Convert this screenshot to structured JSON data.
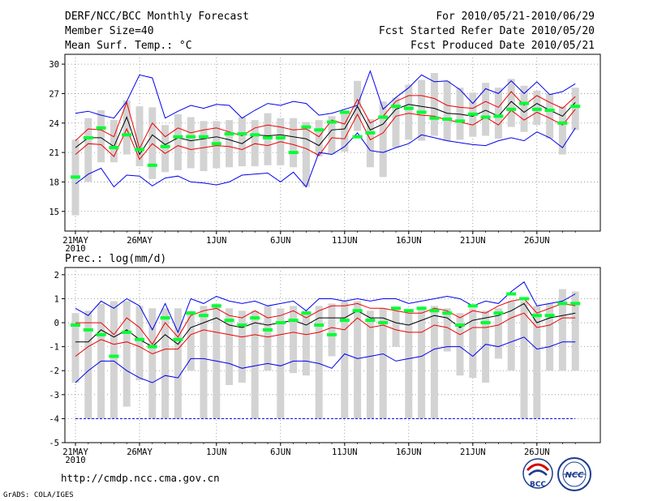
{
  "header": {
    "title": "DERF/NCC/BCC Monthly Forecast",
    "member_size": "Member Size=40",
    "variable": "Mean Surf. Temp.: °C",
    "period": "For 2010/05/21-2010/06/29",
    "started_refer": "Fcst Started Refer Date 2010/05/20",
    "produced": "Fcst Produced Date 2010/05/21"
  },
  "footer": {
    "url": "http://cmdp.ncc.cma.gov.cn",
    "grads": "GrADS: COLA/IGES",
    "logo_bcc": "BCC",
    "logo_ncc": "NCC"
  },
  "x_ticks": [
    {
      "day": 0,
      "label": "21MAY",
      "sub": "2010"
    },
    {
      "day": 5,
      "label": "26MAY",
      "sub": ""
    },
    {
      "day": 11,
      "label": "1JUN",
      "sub": ""
    },
    {
      "day": 16,
      "label": "6JUN",
      "sub": ""
    },
    {
      "day": 21,
      "label": "11JUN",
      "sub": ""
    },
    {
      "day": 26,
      "label": "16JUN",
      "sub": ""
    },
    {
      "day": 31,
      "label": "21JUN",
      "sub": ""
    },
    {
      "day": 36,
      "label": "26JUN",
      "sub": ""
    }
  ],
  "colors": {
    "whisker": "#d3d3d3",
    "median": "#00ff33",
    "mean": "#000000",
    "spread": "#ee0000",
    "extreme": "#0000ee",
    "gridline": "#888888"
  },
  "chart_data": [
    {
      "type": "line",
      "title": "Mean Surf. Temp.: °C",
      "ylabel": "°C",
      "ylim": [
        13,
        31
      ],
      "yticks": [
        15,
        18,
        21,
        24,
        27,
        30
      ],
      "ytick_labels": [
        "15",
        "18",
        "21",
        "24",
        "27",
        "30"
      ],
      "x_days": [
        0,
        1,
        2,
        3,
        4,
        5,
        6,
        7,
        8,
        9,
        10,
        11,
        12,
        13,
        14,
        15,
        16,
        17,
        18,
        19,
        20,
        21,
        22,
        23,
        24,
        25,
        26,
        27,
        28,
        29,
        30,
        31,
        32,
        33,
        34,
        35,
        36,
        37,
        38,
        39
      ],
      "series": [
        {
          "name": "max",
          "color": "extreme",
          "values": [
            25.0,
            25.2,
            24.8,
            24.5,
            26.2,
            28.9,
            28.6,
            24.5,
            25.2,
            25.8,
            25.5,
            25.9,
            25.8,
            24.5,
            25.3,
            26.0,
            25.8,
            26.2,
            26.0,
            24.8,
            25.0,
            25.4,
            25.8,
            29.3,
            25.4,
            26.6,
            27.6,
            28.9,
            28.2,
            28.3,
            27.4,
            26.0,
            27.5,
            27.0,
            28.3,
            27.0,
            28.2,
            26.9,
            27.2,
            28.0
          ]
        },
        {
          "name": "mean+sd",
          "color": "spread",
          "values": [
            22.2,
            23.4,
            23.3,
            22.6,
            26.1,
            21.4,
            24.0,
            22.6,
            23.5,
            23.0,
            23.3,
            23.5,
            23.1,
            22.7,
            23.5,
            23.8,
            23.6,
            23.3,
            23.4,
            22.6,
            24.3,
            23.9,
            26.4,
            24.0,
            24.7,
            26.2,
            26.8,
            26.8,
            26.5,
            25.8,
            25.6,
            25.5,
            26.2,
            25.6,
            27.2,
            25.8,
            26.8,
            26.1,
            25.5,
            26.7
          ]
        },
        {
          "name": "mean",
          "color": "mean",
          "values": [
            21.5,
            22.5,
            22.5,
            21.6,
            24.6,
            20.8,
            22.8,
            21.8,
            22.5,
            22.2,
            22.4,
            22.6,
            22.3,
            21.9,
            22.8,
            22.7,
            22.8,
            22.6,
            22.4,
            21.7,
            23.3,
            23.4,
            25.7,
            23.3,
            23.9,
            25.4,
            25.9,
            25.7,
            25.5,
            25.0,
            24.9,
            24.7,
            25.3,
            24.7,
            26.2,
            25.1,
            26.0,
            25.3,
            24.7,
            26.1
          ]
        },
        {
          "name": "mean-sd",
          "color": "spread",
          "values": [
            20.8,
            21.9,
            21.8,
            20.6,
            23.4,
            20.3,
            21.9,
            20.9,
            21.7,
            21.3,
            21.5,
            21.7,
            21.6,
            21.3,
            21.9,
            21.7,
            22.1,
            21.8,
            21.4,
            20.7,
            22.5,
            22.4,
            24.9,
            22.3,
            23.0,
            24.7,
            25.0,
            24.8,
            24.7,
            24.3,
            24.1,
            23.8,
            24.6,
            23.8,
            25.3,
            24.3,
            25.1,
            24.5,
            23.8,
            25.4
          ]
        },
        {
          "name": "min",
          "color": "extreme",
          "values": [
            17.8,
            18.8,
            19.4,
            17.5,
            18.7,
            18.6,
            17.6,
            18.4,
            18.6,
            18.0,
            17.9,
            17.7,
            18.0,
            18.7,
            18.8,
            18.9,
            18.0,
            19.0,
            17.5,
            21.0,
            20.8,
            21.6,
            23.0,
            21.2,
            21.0,
            21.5,
            21.9,
            22.8,
            22.5,
            22.2,
            22.0,
            21.8,
            21.7,
            22.2,
            22.5,
            22.2,
            23.1,
            22.5,
            21.5,
            23.5
          ]
        }
      ],
      "whiskers": {
        "color": "whisker",
        "low": [
          14.6,
          18.0,
          20.0,
          20.0,
          20.8,
          19.6,
          18.3,
          19.0,
          19.2,
          19.4,
          19.1,
          19.4,
          19.5,
          19.6,
          19.6,
          19.7,
          19.7,
          19.5,
          17.5,
          20.6,
          20.8,
          21.1,
          23.2,
          19.5,
          18.5,
          21.5,
          22.3,
          22.2,
          22.7,
          22.2,
          22.3,
          22.6,
          22.7,
          22.4,
          23.6,
          23.1,
          23.8,
          22.4,
          20.8,
          23.3
        ],
        "high": [
          22.3,
          24.5,
          25.3,
          24.3,
          26.3,
          25.7,
          25.6,
          23.8,
          24.9,
          24.6,
          24.2,
          24.2,
          24.3,
          24.6,
          24.3,
          25.0,
          24.5,
          24.5,
          24.1,
          24.3,
          24.7,
          25.2,
          28.3,
          24.4,
          26.2,
          26.6,
          27.9,
          28.4,
          29.1,
          28.3,
          27.6,
          27.1,
          28.1,
          27.6,
          28.5,
          27.8,
          27.3,
          27.0,
          25.7,
          27.6
        ]
      },
      "median": {
        "color": "median",
        "values": [
          18.5,
          22.5,
          23.5,
          21.5,
          22.8,
          21.3,
          19.7,
          21.6,
          22.6,
          22.6,
          22.6,
          21.9,
          22.9,
          22.9,
          22.8,
          22.5,
          22.5,
          21.0,
          23.6,
          23.3,
          24.1,
          25.1,
          22.6,
          23.0,
          24.6,
          25.7,
          25.5,
          25.1,
          24.5,
          24.4,
          24.2,
          24.9,
          24.6,
          24.7,
          25.4,
          26.0,
          25.4,
          25.3,
          24.0,
          25.7
        ]
      }
    },
    {
      "type": "line",
      "title": "Prec.: log(mm/d)",
      "ylabel": "log(mm/d)",
      "ylim": [
        -5,
        2.3
      ],
      "yticks": [
        -5,
        -4,
        -3,
        -2,
        -1,
        0,
        1,
        2
      ],
      "ytick_labels": [
        "-5",
        "-4",
        "-3",
        "-2",
        "-1",
        "0",
        "1",
        "2"
      ],
      "x_days": [
        0,
        1,
        2,
        3,
        4,
        5,
        6,
        7,
        8,
        9,
        10,
        11,
        12,
        13,
        14,
        15,
        16,
        17,
        18,
        19,
        20,
        21,
        22,
        23,
        24,
        25,
        26,
        27,
        28,
        29,
        30,
        31,
        32,
        33,
        34,
        35,
        36,
        37,
        38,
        39
      ],
      "series": [
        {
          "name": "max",
          "color": "extreme",
          "values": [
            0.6,
            0.3,
            0.9,
            0.6,
            1.0,
            0.7,
            -0.3,
            0.8,
            -0.4,
            1.0,
            0.8,
            1.1,
            0.9,
            0.8,
            0.9,
            0.7,
            0.8,
            0.9,
            0.5,
            1.0,
            1.0,
            0.9,
            1.0,
            0.9,
            1.0,
            1.0,
            0.8,
            0.9,
            1.0,
            1.1,
            1.0,
            0.7,
            0.9,
            0.8,
            1.3,
            1.7,
            0.7,
            0.8,
            0.9,
            1.2
          ]
        },
        {
          "name": "mean+sd",
          "color": "spread",
          "values": [
            0.0,
            0.0,
            0.0,
            -0.5,
            0.2,
            -0.2,
            -0.9,
            0.0,
            -0.6,
            0.3,
            0.5,
            0.6,
            0.3,
            0.2,
            0.5,
            0.2,
            0.3,
            0.5,
            0.2,
            0.5,
            0.7,
            0.7,
            0.8,
            0.6,
            0.6,
            0.5,
            0.4,
            0.4,
            0.6,
            0.5,
            0.2,
            0.5,
            0.4,
            0.7,
            0.9,
            1.0,
            0.4,
            0.6,
            0.8,
            0.7
          ]
        },
        {
          "name": "mean",
          "color": "mean",
          "values": [
            -0.8,
            -0.8,
            -0.3,
            -0.6,
            -0.3,
            -0.7,
            -1.0,
            -0.5,
            -0.9,
            -0.2,
            0.0,
            0.2,
            -0.1,
            -0.2,
            0.0,
            -0.1,
            0.0,
            0.1,
            -0.1,
            0.2,
            0.2,
            0.2,
            0.5,
            0.2,
            0.2,
            0.0,
            -0.1,
            0.1,
            0.3,
            0.2,
            -0.2,
            0.1,
            0.2,
            0.3,
            0.5,
            0.8,
            0.0,
            0.2,
            0.3,
            0.4
          ]
        },
        {
          "name": "mean-sd",
          "color": "spread",
          "values": [
            -1.4,
            -1.0,
            -0.7,
            -0.9,
            -0.8,
            -1.0,
            -1.3,
            -1.1,
            -1.1,
            -0.5,
            -0.3,
            -0.4,
            -0.5,
            -0.6,
            -0.5,
            -0.6,
            -0.5,
            -0.4,
            -0.5,
            -0.4,
            -0.2,
            -0.3,
            0.2,
            -0.2,
            -0.1,
            -0.3,
            -0.4,
            -0.4,
            -0.1,
            -0.2,
            -0.5,
            -0.2,
            -0.2,
            -0.1,
            0.2,
            0.4,
            -0.2,
            -0.1,
            0.2,
            0.2
          ]
        },
        {
          "name": "min",
          "color": "extreme",
          "values": [
            -2.5,
            -2.0,
            -1.6,
            -1.6,
            -2.0,
            -2.3,
            -2.5,
            -2.2,
            -2.3,
            -1.5,
            -1.5,
            -1.6,
            -1.7,
            -1.9,
            -1.8,
            -1.7,
            -1.8,
            -1.6,
            -1.6,
            -1.7,
            -1.9,
            -1.3,
            -1.5,
            -1.4,
            -1.3,
            -1.6,
            -1.5,
            -1.4,
            -1.1,
            -1.0,
            -1.0,
            -1.4,
            -0.9,
            -1.0,
            -0.8,
            -0.6,
            -1.1,
            -1.0,
            -0.8,
            -0.8
          ]
        },
        {
          "name": "no-rain floor",
          "color": "extreme",
          "values": [
            -4,
            -4,
            -4,
            -4,
            -4,
            -4,
            -4,
            -4,
            -4,
            -4,
            -4,
            -4,
            -4,
            -4,
            -4,
            -4,
            -4,
            -4,
            -4,
            -4,
            -4,
            -4,
            -4,
            -4,
            -4,
            -4,
            -4,
            -4,
            -4,
            -4,
            -4,
            -4,
            -4,
            -4,
            -4,
            -4,
            -4,
            -4,
            -4,
            -4
          ]
        }
      ],
      "whiskers": {
        "color": "whisker",
        "low": [
          -2.5,
          -4,
          -4,
          -4,
          -3.5,
          -2.4,
          -4,
          -4,
          -4,
          -2.0,
          -4,
          -4,
          -2.6,
          -2.5,
          -4,
          -2.0,
          -4,
          -2.1,
          -2.2,
          -4,
          -1.4,
          -4,
          -4,
          -4,
          -4,
          -1.0,
          -4,
          -4,
          -4,
          -1.2,
          -2.2,
          -2.3,
          -2.5,
          -1.5,
          -2.0,
          -4,
          -4,
          -2.0,
          -2.0,
          -2.0
        ],
        "high": [
          0.4,
          0.5,
          0.8,
          0.9,
          0.9,
          0.7,
          0.6,
          0.6,
          0.6,
          0.5,
          0.7,
          0.8,
          0.6,
          0.5,
          0.5,
          0.7,
          0.6,
          0.7,
          0.5,
          0.7,
          0.8,
          0.9,
          0.9,
          0.5,
          0.6,
          0.5,
          0.4,
          0.6,
          0.7,
          0.6,
          0.4,
          0.6,
          0.5,
          0.6,
          0.9,
          0.9,
          0.7,
          0.8,
          1.4,
          1.3
        ]
      },
      "median": {
        "color": "median",
        "values": [
          -0.1,
          -0.3,
          -0.5,
          -1.4,
          -0.4,
          -0.7,
          -1.0,
          0.2,
          -0.7,
          0.4,
          0.3,
          0.7,
          0.1,
          -0.1,
          0.2,
          -0.3,
          0.0,
          0.1,
          0.4,
          -0.1,
          -0.5,
          0.1,
          0.5,
          0.1,
          0.0,
          0.6,
          0.5,
          0.6,
          0.5,
          0.4,
          -0.1,
          0.7,
          0.0,
          0.4,
          1.2,
          1.0,
          0.3,
          0.3,
          0.8,
          0.8
        ]
      }
    }
  ]
}
